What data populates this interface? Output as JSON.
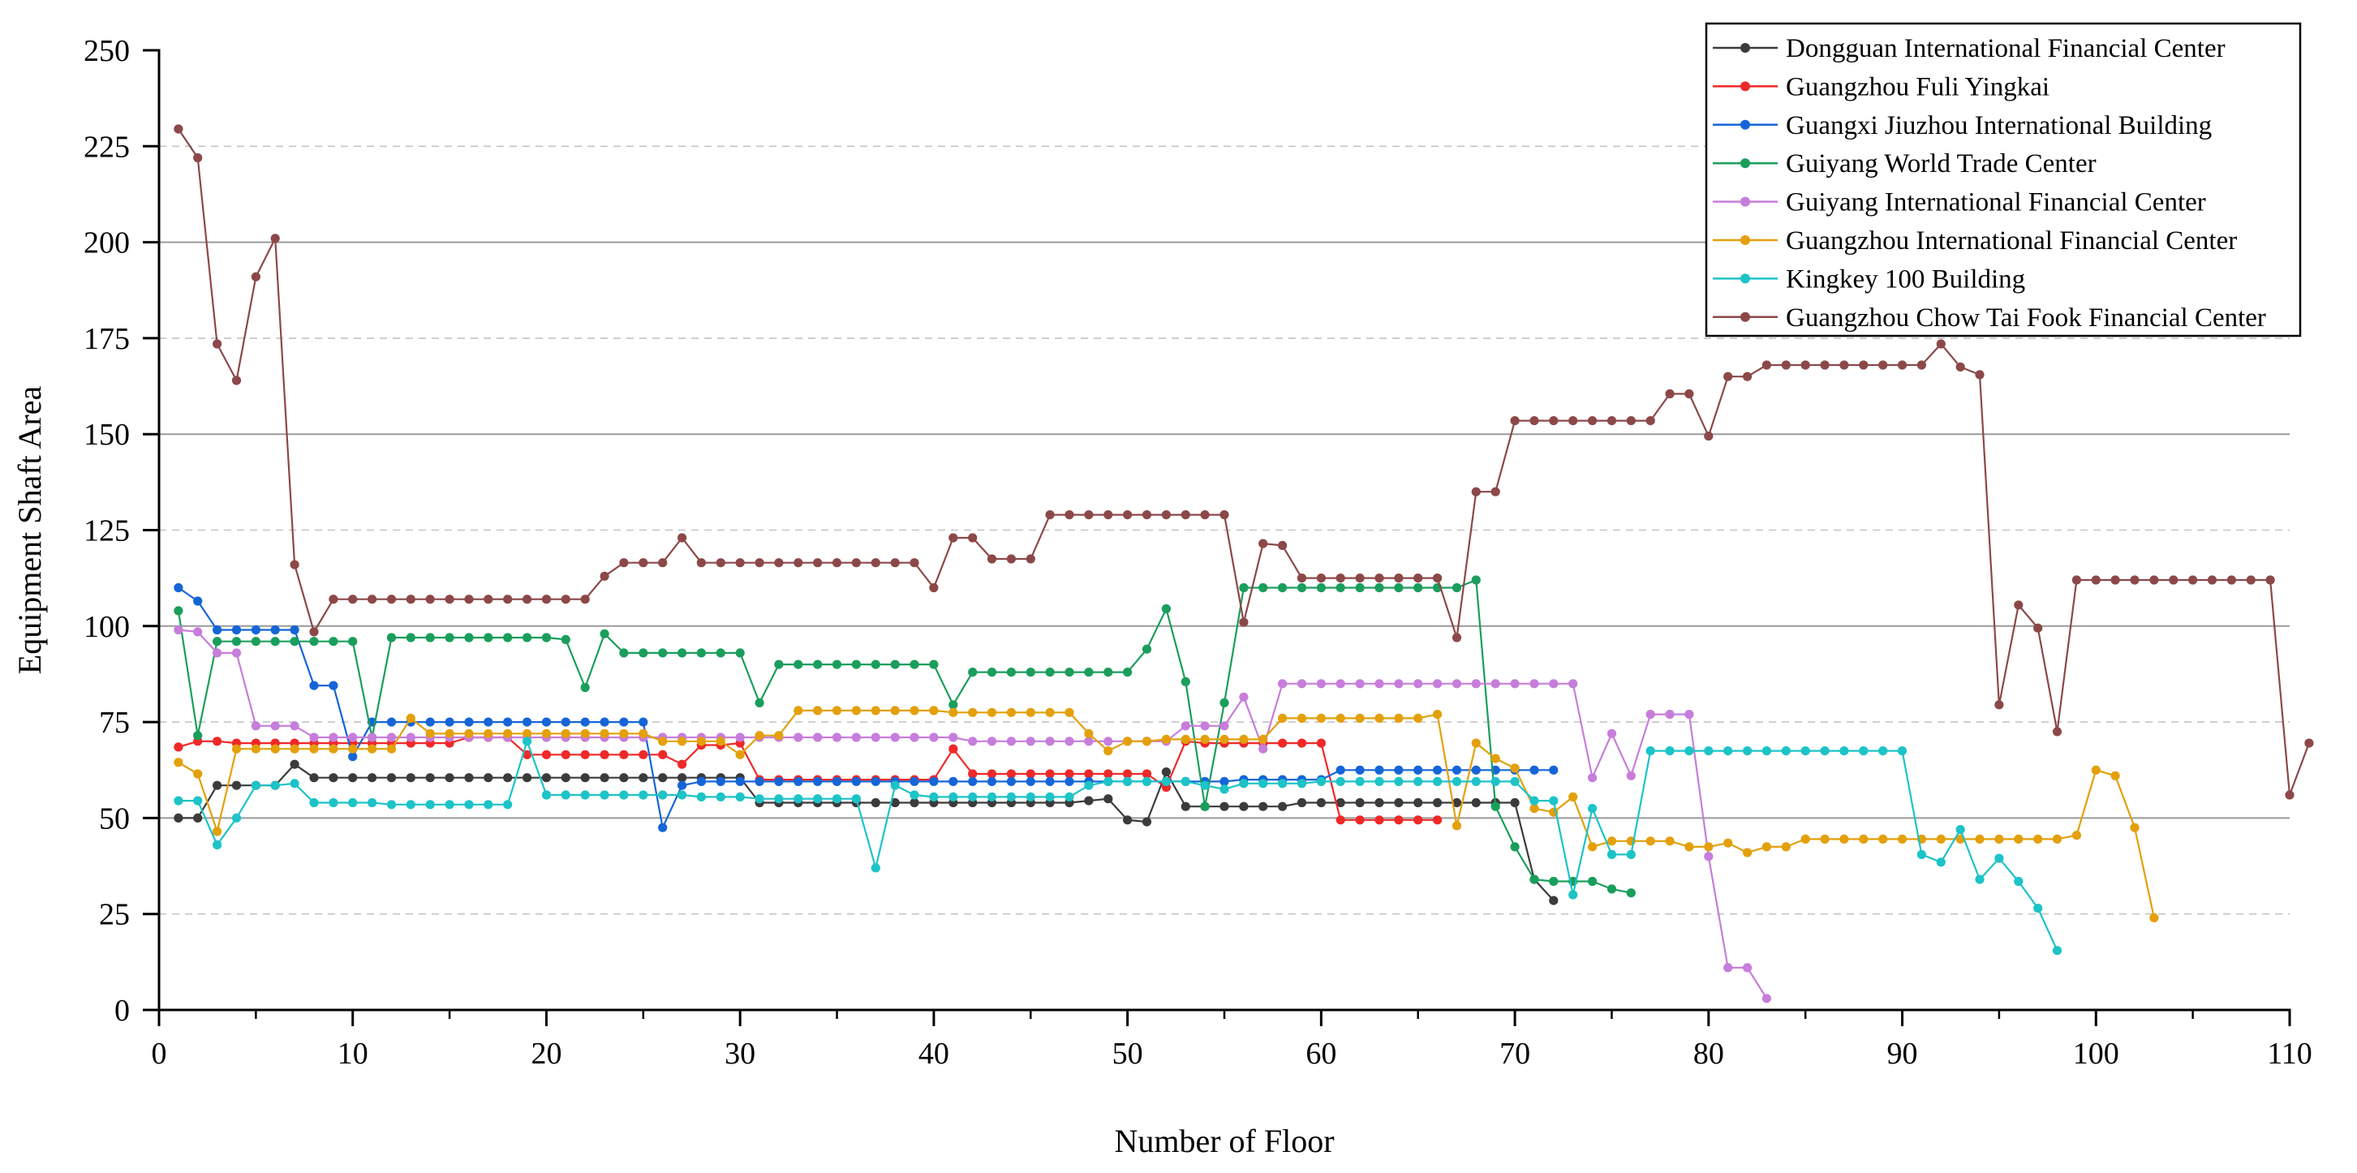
{
  "chart_data": {
    "type": "line",
    "xlabel": "Number of Floor",
    "ylabel": "Equipment Shaft Area",
    "xlim": [
      0,
      110
    ],
    "ylim": [
      0,
      250
    ],
    "xticks": [
      0,
      10,
      20,
      30,
      40,
      50,
      60,
      70,
      80,
      90,
      100,
      110
    ],
    "yticks": [
      0,
      25,
      50,
      75,
      100,
      125,
      150,
      175,
      200,
      225,
      250
    ],
    "grid": "horizontal; solid at 50, 100, 150, 200; dashed at 25, 75, 125, 175, 225",
    "legend_position": "top-right",
    "series": [
      {
        "name": "Dongguan International Financial Center",
        "color": "#3b3b3b",
        "values": [
          50,
          50,
          58.5,
          58.5,
          58.5,
          58.5,
          64,
          60.5,
          60.5,
          60.5,
          60.5,
          60.5,
          60.5,
          60.5,
          60.5,
          60.5,
          60.5,
          60.5,
          60.5,
          60.5,
          60.5,
          60.5,
          60.5,
          60.5,
          60.5,
          60.5,
          60.5,
          60.5,
          60.5,
          60.5,
          54,
          54,
          54,
          54,
          54,
          54,
          54,
          54,
          54,
          54,
          54,
          54,
          54,
          54,
          54,
          54,
          54,
          54.5,
          55,
          49.5,
          49,
          62,
          53,
          53,
          53,
          53,
          53,
          53,
          54,
          54,
          54,
          54,
          54,
          54,
          54,
          54,
          54,
          54,
          54,
          54,
          34,
          28.5
        ]
      },
      {
        "name": "Guangzhou Fuli Yingkai",
        "color": "#f02828",
        "values": [
          68.5,
          70,
          70,
          69.5,
          69.5,
          69.5,
          69.5,
          69.5,
          69.5,
          69.5,
          69.5,
          69.5,
          69.5,
          69.5,
          69.5,
          71,
          71,
          71,
          66.5,
          66.5,
          66.5,
          66.5,
          66.5,
          66.5,
          66.5,
          66.5,
          64,
          69,
          69,
          69.5,
          60,
          60,
          60,
          60,
          60,
          60,
          60,
          60,
          60,
          60,
          68,
          61.5,
          61.5,
          61.5,
          61.5,
          61.5,
          61.5,
          61.5,
          61.5,
          61.5,
          61.5,
          58,
          70,
          69.5,
          69.5,
          69.5,
          69.5,
          69.5,
          69.5,
          69.5,
          49.5,
          49.5,
          49.5,
          49.5,
          49.5,
          49.5
        ]
      },
      {
        "name": "Guangxi Jiuzhou International Building",
        "color": "#1565d8",
        "values": [
          110,
          106.5,
          99,
          99,
          99,
          99,
          99,
          84.5,
          84.5,
          66,
          75,
          75,
          75,
          75,
          75,
          75,
          75,
          75,
          75,
          75,
          75,
          75,
          75,
          75,
          75,
          47.5,
          58.5,
          59.5,
          59.5,
          59.5,
          59.5,
          59.5,
          59.5,
          59.5,
          59.5,
          59.5,
          59.5,
          59.5,
          59.5,
          59.5,
          59.5,
          59.5,
          59.5,
          59.5,
          59.5,
          59.5,
          59.5,
          59.5,
          59.5,
          59.5,
          59.5,
          59.5,
          59.5,
          59.5,
          59.5,
          60,
          60,
          60,
          60,
          60,
          62.5,
          62.5,
          62.5,
          62.5,
          62.5,
          62.5,
          62.5,
          62.5,
          62.5,
          62.5,
          62.5,
          62.5
        ]
      },
      {
        "name": "Guiyang World Trade Center",
        "color": "#1a9e5c",
        "values": [
          104,
          71.5,
          96,
          96,
          96,
          96,
          96,
          96,
          96,
          96,
          71,
          97,
          97,
          97,
          97,
          97,
          97,
          97,
          97,
          97,
          96.5,
          84,
          98,
          93,
          93,
          93,
          93,
          93,
          93,
          93,
          80,
          90,
          90,
          90,
          90,
          90,
          90,
          90,
          90,
          90,
          79.5,
          88,
          88,
          88,
          88,
          88,
          88,
          88,
          88,
          88,
          94,
          104.5,
          85.5,
          53,
          80,
          110,
          110,
          110,
          110,
          110,
          110,
          110,
          110,
          110,
          110,
          110,
          110,
          112,
          53,
          42.5,
          34,
          33.5,
          33.5,
          33.5,
          31.5,
          30.5
        ]
      },
      {
        "name": "Guiyang International Financial Center",
        "color": "#c77ddb",
        "values": [
          99,
          98.5,
          93,
          93,
          74,
          74,
          74,
          71,
          71,
          71,
          71,
          71,
          71,
          71,
          71,
          71,
          71,
          71,
          71,
          71,
          71,
          71,
          71,
          71,
          71,
          71,
          71,
          71,
          71,
          71,
          71,
          71,
          71,
          71,
          71,
          71,
          71,
          71,
          71,
          71,
          71,
          70,
          70,
          70,
          70,
          70,
          70,
          70,
          70,
          70,
          70,
          70,
          74,
          74,
          74,
          81.5,
          68,
          85,
          85,
          85,
          85,
          85,
          85,
          85,
          85,
          85,
          85,
          85,
          85,
          85,
          85,
          85,
          85,
          60.5,
          72,
          61,
          77,
          77,
          77,
          40,
          11,
          11,
          3
        ]
      },
      {
        "name": "Guangzhou International Financial Center",
        "color": "#e3a00b",
        "values": [
          64.5,
          61.5,
          46.5,
          68,
          68,
          68,
          68,
          68,
          68,
          68,
          68,
          68,
          76,
          72,
          72,
          72,
          72,
          72,
          72,
          72,
          72,
          72,
          72,
          72,
          72,
          70,
          70,
          70,
          70,
          66.5,
          71.5,
          71.5,
          78,
          78,
          78,
          78,
          78,
          78,
          78,
          78,
          77.5,
          77.5,
          77.5,
          77.5,
          77.5,
          77.5,
          77.5,
          72,
          67.5,
          70,
          70,
          70.5,
          70.5,
          70.5,
          70.5,
          70.5,
          70.5,
          76,
          76,
          76,
          76,
          76,
          76,
          76,
          76,
          77,
          48,
          69.5,
          65.5,
          63,
          52.5,
          51.5,
          55.5,
          42.5,
          44,
          44,
          44,
          44,
          42.5,
          42.5,
          43.5,
          41,
          42.5,
          42.5,
          44.5,
          44.5,
          44.5,
          44.5,
          44.5,
          44.5,
          44.5,
          44.5,
          44.5,
          44.5,
          44.5,
          44.5,
          44.5,
          44.5,
          45.5,
          62.5,
          61,
          47.5,
          24
        ]
      },
      {
        "name": "Kingkey 100 Building",
        "color": "#1cc3c7",
        "values": [
          54.5,
          54.5,
          43,
          50,
          58.5,
          58.5,
          59,
          54,
          54,
          54,
          54,
          53.5,
          53.5,
          53.5,
          53.5,
          53.5,
          53.5,
          53.5,
          70,
          56,
          56,
          56,
          56,
          56,
          56,
          56,
          56,
          55.5,
          55.5,
          55.5,
          55,
          55,
          55,
          55,
          55,
          55,
          37,
          58.5,
          56,
          55.5,
          55.5,
          55.5,
          55.5,
          55.5,
          55.5,
          55.5,
          55.5,
          58.5,
          59.5,
          59.5,
          59.5,
          59.5,
          59.5,
          58.5,
          57.5,
          59,
          59,
          59,
          59,
          59.5,
          59.5,
          59.5,
          59.5,
          59.5,
          59.5,
          59.5,
          59.5,
          59.5,
          59.5,
          59.5,
          54.5,
          54.5,
          30,
          52.5,
          40.5,
          40.5,
          67.5,
          67.5,
          67.5,
          67.5,
          67.5,
          67.5,
          67.5,
          67.5,
          67.5,
          67.5,
          67.5,
          67.5,
          67.5,
          67.5,
          40.5,
          38.5,
          47,
          34,
          39.5,
          33.5,
          26.5,
          15.5
        ]
      },
      {
        "name": "Guangzhou Chow Tai Fook Financial Center",
        "color": "#8c4848",
        "values": [
          229.5,
          222,
          173.5,
          164,
          191,
          201,
          116,
          98.5,
          107,
          107,
          107,
          107,
          107,
          107,
          107,
          107,
          107,
          107,
          107,
          107,
          107,
          107,
          113,
          116.5,
          116.5,
          116.5,
          123,
          116.5,
          116.5,
          116.5,
          116.5,
          116.5,
          116.5,
          116.5,
          116.5,
          116.5,
          116.5,
          116.5,
          116.5,
          110,
          123,
          123,
          117.5,
          117.5,
          117.5,
          129,
          129,
          129,
          129,
          129,
          129,
          129,
          129,
          129,
          129,
          101,
          121.5,
          121,
          112.5,
          112.5,
          112.5,
          112.5,
          112.5,
          112.5,
          112.5,
          112.5,
          97,
          135,
          135,
          153.5,
          153.5,
          153.5,
          153.5,
          153.5,
          153.5,
          153.5,
          153.5,
          160.5,
          160.5,
          149.5,
          165,
          165,
          168,
          168,
          168,
          168,
          168,
          168,
          168,
          168,
          168,
          173.5,
          167.5,
          165.5,
          79.5,
          105.5,
          99.5,
          72.5,
          112,
          112,
          112,
          112,
          112,
          112,
          112,
          112,
          112,
          112,
          112,
          56,
          69.5
        ]
      }
    ]
  }
}
